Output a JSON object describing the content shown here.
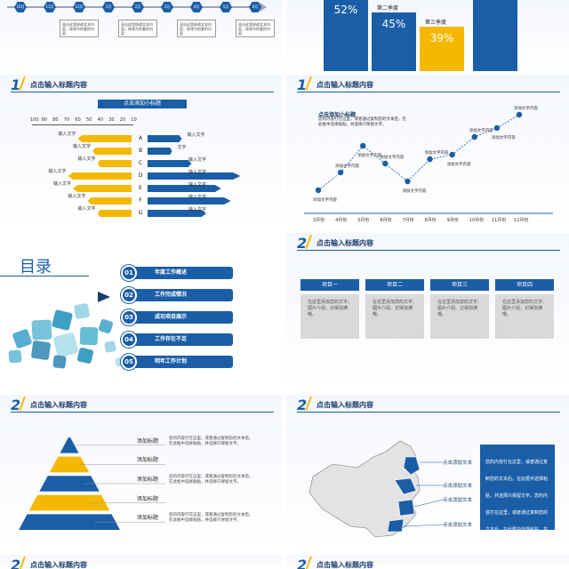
{
  "slide_timeline": {
    "nodes": [
      "10月",
      "11月",
      "12月",
      "1月",
      "2月",
      "3月",
      "4月",
      "5月",
      "6月"
    ],
    "box_text": "双击这里修改文本内容，修改为你要的内容"
  },
  "slide_quarters": {
    "bars": [
      {
        "label": "",
        "value_text": "52%",
        "color": "#1b5ea8"
      },
      {
        "label": "第二季度",
        "value_text": "45%",
        "color": "#1b5ea8"
      },
      {
        "label": "第三季度",
        "value_text": "39%",
        "color": "#f5b800"
      },
      {
        "label": "",
        "value_text": "",
        "color": "#1b5ea8"
      }
    ]
  },
  "slide_hbar": {
    "number": "1",
    "title": "点击输入标题内容",
    "subtitle": "点击添加小标题",
    "scale": [
      "100",
      "90",
      "80",
      "70",
      "60",
      "50",
      "40",
      "30",
      "20",
      "10"
    ],
    "rows": [
      {
        "cat": "A",
        "left_text": "输入文字",
        "left": 55,
        "right_text": "输入文字",
        "right": 35
      },
      {
        "cat": "B",
        "left_text": "输入文字",
        "left": 40,
        "right_text": "文字",
        "right": 25
      },
      {
        "cat": "C",
        "left_text": "输入文字",
        "left": 35,
        "right_text": "输入文字",
        "right": 45
      },
      {
        "cat": "D",
        "left_text": "输入文字",
        "left": 65,
        "right_text": "输入文字",
        "right": 95
      },
      {
        "cat": "E",
        "left_text": "输入文字",
        "left": 60,
        "right_text": "输入文字",
        "right": 75
      },
      {
        "cat": "F",
        "left_text": "输入文字",
        "left": 45,
        "right_text": "输入文字",
        "right": 85
      },
      {
        "cat": "G",
        "left_text": "输入文字",
        "left": 35,
        "right_text": "输入文字",
        "right": 60
      }
    ]
  },
  "slide_line": {
    "number": "1",
    "title": "点击输入标题内容",
    "subtitle": "点击添加小标题",
    "desc": "您的内容打在这里，或者通过复制您的文本后，在此框中选择粘贴，并选择只保留文字。",
    "point_label": "添加文字内容",
    "chart_data": {
      "type": "line",
      "x": [
        "3月份",
        "4月份",
        "5月份",
        "6月份",
        "7月份",
        "8月份",
        "9月份",
        "10月份",
        "11月份",
        "12月份"
      ],
      "values": [
        2,
        4,
        7,
        5,
        3,
        5.5,
        6,
        8,
        9,
        10.5
      ],
      "ylim": [
        0,
        12
      ]
    }
  },
  "slide_toc": {
    "title": "目录",
    "items": [
      {
        "num": "01",
        "label": "年度工作概述"
      },
      {
        "num": "02",
        "label": "工作完成情况"
      },
      {
        "num": "03",
        "label": "成功项目展示"
      },
      {
        "num": "04",
        "label": "工作存在不足"
      },
      {
        "num": "05",
        "label": "明年工作计划"
      }
    ]
  },
  "slide_cards": {
    "number": "2",
    "title": "点击输入标题内容",
    "cards": [
      {
        "head": "项目一",
        "body": "在这里添加您的文字、图片介绍、记得加满哦。"
      },
      {
        "head": "项目二",
        "body": "在这里添加您的文字、图片介绍、记得加满哦。"
      },
      {
        "head": "项目三",
        "body": "在这里添加您的文字、图片介绍、记得加满哦。"
      },
      {
        "head": "项目四",
        "body": "在这里添加您的文字、图片介绍、记得加满哦。"
      }
    ]
  },
  "slide_pyramid": {
    "number": "2",
    "title": "点击输入标题内容",
    "labels": [
      "添加标题",
      "添加标题",
      "添加标题",
      "添加标题",
      "添加标题"
    ],
    "desc": "您的内容打在这里，或者通过复制您的文本后，在此框中选择粘贴，并选择只保留文字。"
  },
  "slide_map": {
    "number": "2",
    "title": "点击输入标题内容",
    "callouts": [
      "点击添加文本",
      "点击添加文本",
      "点击添加文本",
      "点击添加文本"
    ],
    "desc": "您的内容打在这里，或者通过复制您的文本后，在此框中选择粘贴，并选择只保留文字。您的内容打在这里，或者通过复制您的文本后，在此框中选择粘贴，并选择只保留文字。"
  },
  "slide_bottom_left": {
    "number": "2",
    "title": "点击输入标题内容"
  },
  "slide_bottom_right": {
    "number": "2",
    "title": "点击输入标题内容"
  }
}
